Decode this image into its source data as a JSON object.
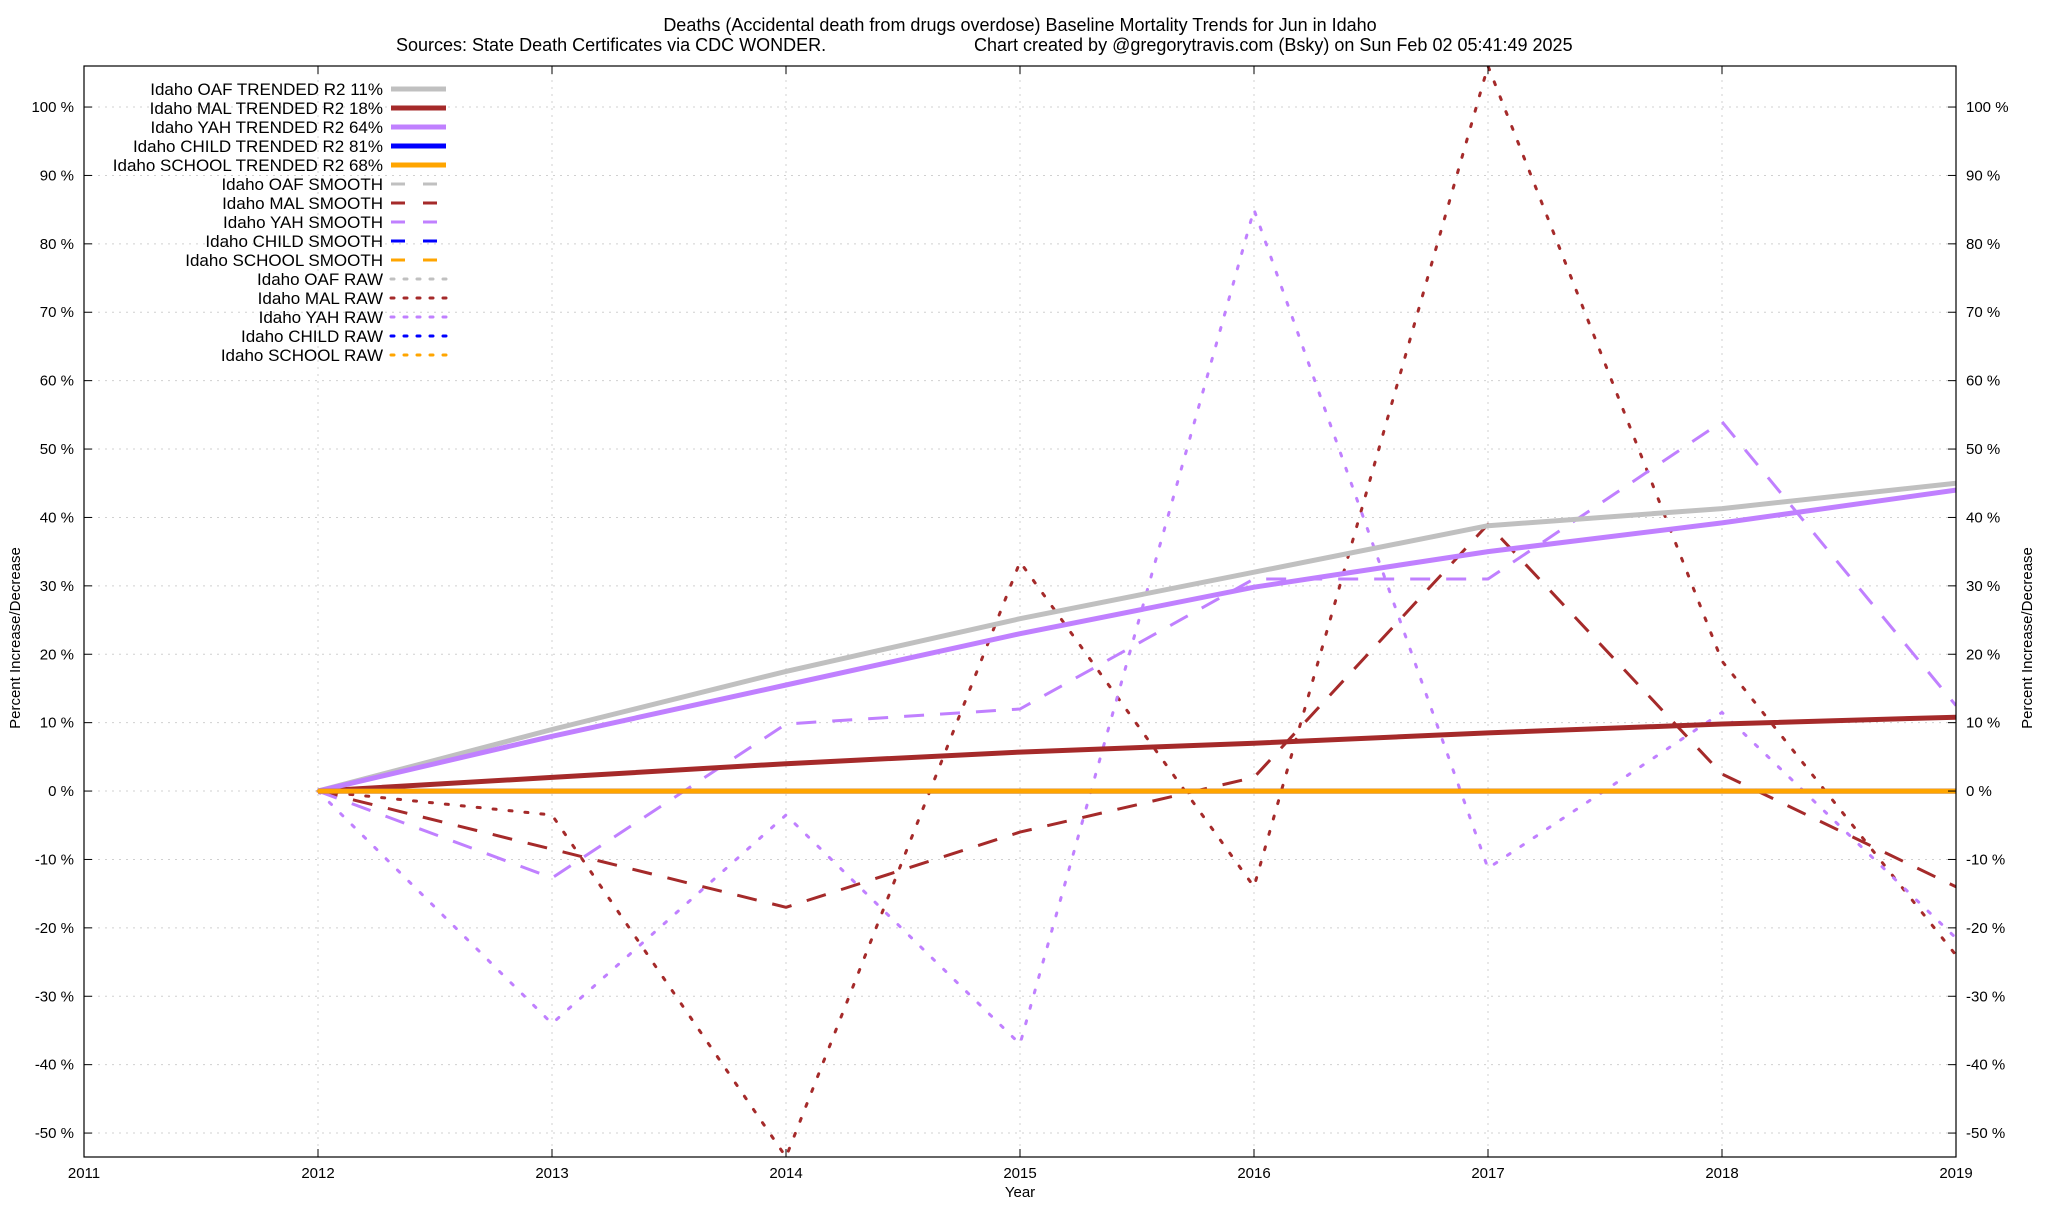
{
  "chart_data": {
    "type": "line",
    "title": "Deaths (Accidental death from drugs overdose)  Baseline Mortality Trends for Jun in Idaho",
    "subtitle_left": "Sources: State Death Certificates via CDC WONDER.",
    "subtitle_right": "Chart created by @gregorytravis.com (Bsky) on Sun Feb 02 05:41:49 2025",
    "xlabel": "Year",
    "ylabel_left": "Percent Increase/Decrease",
    "ylabel_right": "Percent Increase/Decrease",
    "xlim": [
      2011,
      2019
    ],
    "ylim": [
      -53.5,
      106
    ],
    "x_ticks": [
      2011,
      2012,
      2013,
      2014,
      2015,
      2016,
      2017,
      2018,
      2019
    ],
    "x_tick_labels": [
      "2011",
      "2012",
      "2013",
      "2014",
      "2015",
      "2016",
      "2017",
      "2018",
      "2019"
    ],
    "y_ticks": [
      -50,
      -40,
      -30,
      -20,
      -10,
      0,
      10,
      20,
      30,
      40,
      50,
      60,
      70,
      80,
      90,
      100
    ],
    "y_tick_labels": [
      "-50 %",
      "-40 %",
      "-30 %",
      "-20 %",
      "-10 %",
      "0 %",
      "10 %",
      "20 %",
      "30 %",
      "40 %",
      "50 %",
      "60 %",
      "70 %",
      "80 %",
      "90 %",
      "100 %"
    ],
    "grid": true,
    "legend_position": "top-left",
    "x": [
      2012,
      2013,
      2014,
      2015,
      2016,
      2017,
      2018,
      2019
    ],
    "series": [
      {
        "name": "Idaho OAF TRENDED R2  11%",
        "style": "trended",
        "color": "#c0c0c0",
        "values": [
          0,
          9,
          17.5,
          25.2,
          32,
          38.8,
          41.3,
          45
        ]
      },
      {
        "name": "Idaho MAL TRENDED R2  18%",
        "style": "trended",
        "color": "#a52a2a",
        "values": [
          0,
          2,
          4,
          5.7,
          7,
          8.5,
          9.8,
          10.8
        ]
      },
      {
        "name": "Idaho YAH TRENDED R2  64%",
        "style": "trended",
        "color": "#c080ff",
        "values": [
          0,
          8,
          15.5,
          23,
          29.8,
          35,
          39.2,
          44
        ]
      },
      {
        "name": "Idaho CHILD TRENDED R2  81%",
        "style": "trended",
        "color": "#0000ff",
        "values": [
          0,
          0,
          0,
          0,
          0,
          0,
          0,
          0
        ]
      },
      {
        "name": "Idaho SCHOOL TRENDED R2  68%",
        "style": "trended",
        "color": "#ffa500",
        "values": [
          0,
          0,
          0,
          0,
          0,
          0,
          0,
          0
        ]
      },
      {
        "name": "Idaho OAF SMOOTH",
        "style": "smooth",
        "color": "#c0c0c0",
        "values": [
          0,
          0,
          0,
          0,
          0,
          0,
          0,
          0
        ]
      },
      {
        "name": "Idaho MAL SMOOTH",
        "style": "smooth",
        "color": "#a52a2a",
        "values": [
          0,
          -8.5,
          -17,
          -6,
          2,
          39,
          2.5,
          -14
        ]
      },
      {
        "name": "Idaho YAH SMOOTH",
        "style": "smooth",
        "color": "#c080ff",
        "values": [
          0,
          -12.7,
          9.8,
          12,
          31,
          31,
          54,
          12.5
        ]
      },
      {
        "name": "Idaho CHILD SMOOTH",
        "style": "smooth",
        "color": "#0000ff",
        "values": [
          0,
          0,
          0,
          0,
          0,
          0,
          0,
          0
        ]
      },
      {
        "name": "Idaho SCHOOL SMOOTH",
        "style": "smooth",
        "color": "#ffa500",
        "values": [
          0,
          0,
          0,
          0,
          0,
          0,
          0,
          0
        ]
      },
      {
        "name": "Idaho OAF RAW",
        "style": "raw",
        "color": "#c0c0c0",
        "values": [
          0,
          0,
          0,
          0,
          0,
          0,
          0,
          0
        ]
      },
      {
        "name": "Idaho MAL RAW",
        "style": "raw",
        "color": "#a52a2a",
        "values": [
          0,
          -3.5,
          -53.5,
          33.5,
          -14,
          106,
          19,
          -24
        ]
      },
      {
        "name": "Idaho YAH RAW",
        "style": "raw",
        "color": "#c080ff",
        "values": [
          0,
          -34,
          -3.5,
          -37,
          85,
          -11.3,
          11.5,
          -21.5
        ]
      },
      {
        "name": "Idaho CHILD RAW",
        "style": "raw",
        "color": "#0000ff",
        "values": [
          0,
          0,
          0,
          0,
          0,
          0,
          0,
          0
        ]
      },
      {
        "name": "Idaho SCHOOL RAW",
        "style": "raw",
        "color": "#ffa500",
        "values": [
          0,
          0,
          0,
          0,
          0,
          0,
          0,
          0
        ]
      }
    ]
  }
}
